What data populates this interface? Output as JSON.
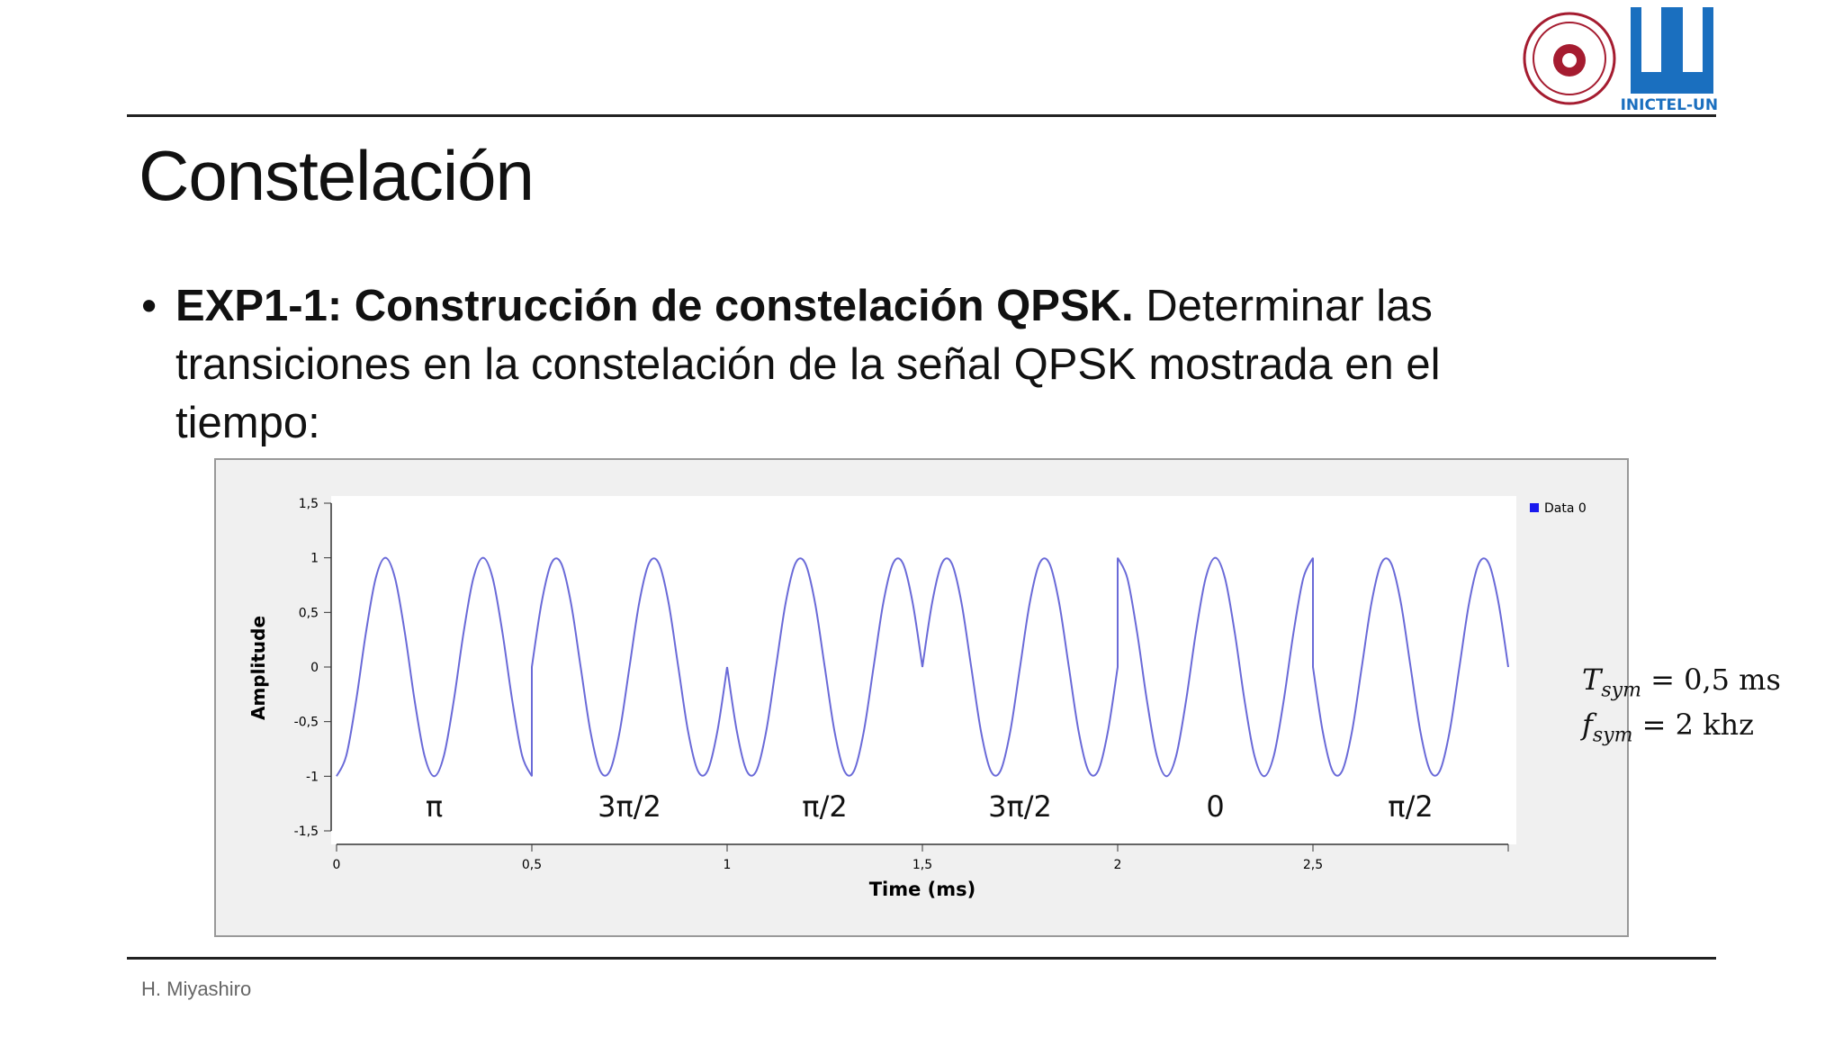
{
  "header": {
    "logo_text": "INICTEL-UNI"
  },
  "title": "Constelación",
  "bullet": {
    "bold": "EXP1-1: Construcción de constelación QPSK.",
    "text": "Determinar las transiciones en la constelación de la señal QPSK mostrada en el tiempo:"
  },
  "chart_data": {
    "type": "line",
    "x_label": "Time (ms)",
    "y_label": "Amplitude",
    "x": [
      0,
      0.025,
      0.05,
      0.075,
      0.1,
      0.125,
      0.15,
      0.175,
      0.2,
      0.225,
      0.25,
      0.275,
      0.3,
      0.325,
      0.35,
      0.375,
      0.4,
      0.425,
      0.45,
      0.475,
      0.5,
      0.5,
      0.525,
      0.55,
      0.575,
      0.6,
      0.625,
      0.65,
      0.675,
      0.7,
      0.725,
      0.75,
      0.775,
      0.8,
      0.825,
      0.85,
      0.875,
      0.9,
      0.925,
      0.95,
      0.975,
      1,
      1,
      1.025,
      1.05,
      1.075,
      1.1,
      1.125,
      1.15,
      1.175,
      1.2,
      1.225,
      1.25,
      1.275,
      1.3,
      1.325,
      1.35,
      1.375,
      1.4,
      1.425,
      1.45,
      1.475,
      1.5,
      1.5,
      1.525,
      1.55,
      1.575,
      1.6,
      1.625,
      1.65,
      1.675,
      1.7,
      1.725,
      1.75,
      1.775,
      1.8,
      1.825,
      1.85,
      1.875,
      1.9,
      1.925,
      1.95,
      1.975,
      2,
      2,
      2.025,
      2.05,
      2.075,
      2.1,
      2.125,
      2.15,
      2.175,
      2.2,
      2.225,
      2.25,
      2.275,
      2.3,
      2.325,
      2.35,
      2.375,
      2.4,
      2.425,
      2.45,
      2.475,
      2.5,
      2.5,
      2.525,
      2.55,
      2.575,
      2.6,
      2.625,
      2.65,
      2.675,
      2.7,
      2.725,
      2.75,
      2.775,
      2.8,
      2.825,
      2.85,
      2.875,
      2.9,
      2.925,
      2.95,
      2.975,
      3
    ],
    "series": [
      {
        "name": "Data 0",
        "color": "#6a6ad8",
        "values": [
          -1,
          -0.81,
          -0.31,
          0.31,
          0.81,
          1,
          0.81,
          0.31,
          -0.31,
          -0.81,
          -1,
          -0.81,
          -0.31,
          0.31,
          0.81,
          1,
          0.81,
          0.31,
          -0.31,
          -0.81,
          -1,
          0,
          0.59,
          0.95,
          0.95,
          0.59,
          0,
          -0.59,
          -0.95,
          -0.95,
          -0.59,
          0,
          0.59,
          0.95,
          0.95,
          0.59,
          0,
          -0.59,
          -0.95,
          -0.95,
          -0.59,
          0,
          0,
          -0.59,
          -0.95,
          -0.95,
          -0.59,
          0,
          0.59,
          0.95,
          0.95,
          0.59,
          0,
          -0.59,
          -0.95,
          -0.95,
          -0.59,
          0,
          0.59,
          0.95,
          0.95,
          0.59,
          0,
          0,
          0.59,
          0.95,
          0.95,
          0.59,
          0,
          -0.59,
          -0.95,
          -0.95,
          -0.59,
          0,
          0.59,
          0.95,
          0.95,
          0.59,
          0,
          -0.59,
          -0.95,
          -0.95,
          -0.59,
          0,
          1,
          0.81,
          0.31,
          -0.31,
          -0.81,
          -1,
          -0.81,
          -0.31,
          0.31,
          0.81,
          1,
          0.81,
          0.31,
          -0.31,
          -0.81,
          -1,
          -0.81,
          -0.31,
          0.31,
          0.81,
          1,
          0,
          -0.59,
          -0.95,
          -0.95,
          -0.59,
          0,
          0.59,
          0.95,
          0.95,
          0.59,
          0,
          -0.59,
          -0.95,
          -0.95,
          -0.59,
          0,
          0.59,
          0.95,
          0.95,
          0.59,
          0
        ]
      }
    ],
    "xlim": [
      0,
      3
    ],
    "ylim": [
      -1.5,
      1.5
    ],
    "xticks": [
      0,
      {
        "value": 0.5,
        "label": "0,5"
      },
      1,
      {
        "value": 1.5,
        "label": "1,5"
      },
      2,
      {
        "value": 2.5,
        "label": "2,5"
      }
    ],
    "yticks": [
      {
        "value": 1.5,
        "label": "1,5"
      },
      1,
      {
        "value": 0.5,
        "label": "0,5"
      },
      0,
      {
        "value": -0.5,
        "label": "-0,5"
      },
      -1,
      {
        "value": -1.5,
        "label": "-1,5"
      }
    ],
    "annotations": [
      "π",
      "3π/2",
      "π/2",
      "3π/2",
      "0",
      "π/2"
    ],
    "legend": "upper right",
    "legend_color": "#1a1aee"
  },
  "formulas": [
    {
      "symbol": "T",
      "subscript": "sym",
      "rest": "= 0,5 ms"
    },
    {
      "symbol": "f",
      "subscript": "sym",
      "rest": "= 2 khz"
    }
  ],
  "footer": "H. Miyashiro"
}
